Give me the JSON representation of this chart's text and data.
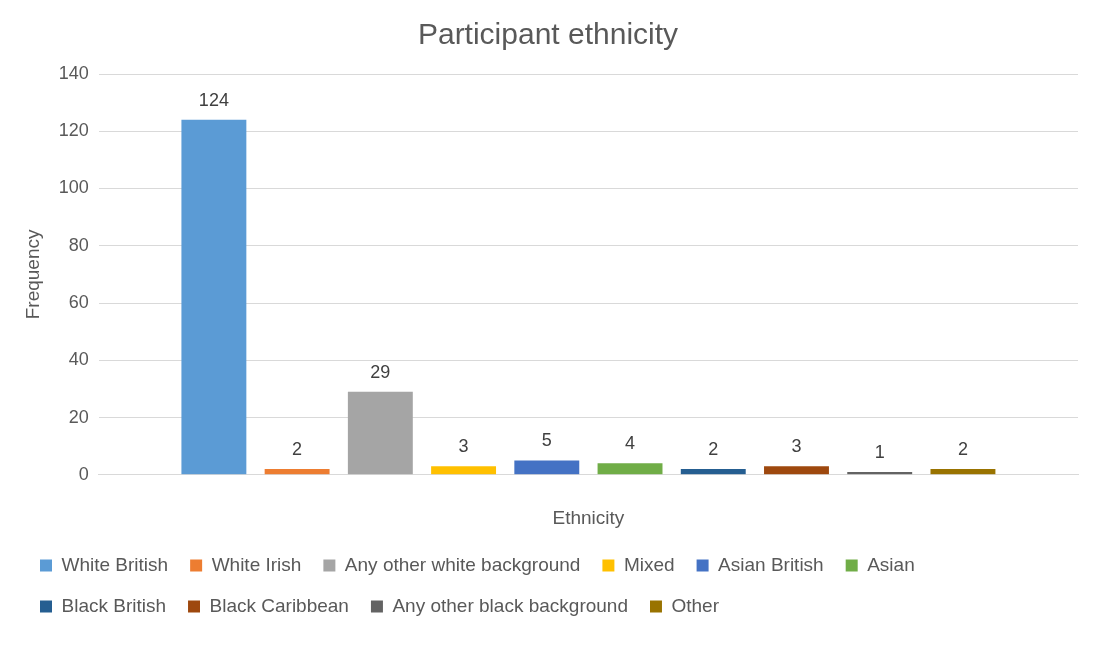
{
  "chart_data": {
    "type": "bar",
    "title": "Participant ethnicity",
    "xlabel": "Ethnicity",
    "ylabel": "Frequency",
    "categories": [
      null
    ],
    "series": [
      {
        "name": "White British",
        "color": "#5b9bd5",
        "values": [
          124
        ]
      },
      {
        "name": "White Irish",
        "color": "#ed7d31",
        "values": [
          2
        ]
      },
      {
        "name": "Any other white background",
        "color": "#a5a5a5",
        "values": [
          29
        ]
      },
      {
        "name": "Mixed",
        "color": "#ffc000",
        "values": [
          3
        ]
      },
      {
        "name": "Asian British",
        "color": "#4472c4",
        "values": [
          5
        ]
      },
      {
        "name": "Asian",
        "color": "#70ad47",
        "values": [
          4
        ]
      },
      {
        "name": "Black British",
        "color": "#255e91",
        "values": [
          2
        ]
      },
      {
        "name": "Black Caribbean",
        "color": "#9e480e",
        "values": [
          3
        ]
      },
      {
        "name": "Any other black background",
        "color": "#636363",
        "values": [
          1
        ]
      },
      {
        "name": "Other",
        "color": "#997300",
        "values": [
          2
        ]
      }
    ],
    "ylim": [
      0,
      140
    ],
    "yticks": [
      0,
      20,
      40,
      60,
      80,
      100,
      120,
      140
    ],
    "grid": "y",
    "legend": "bottom",
    "data_labels": true
  }
}
